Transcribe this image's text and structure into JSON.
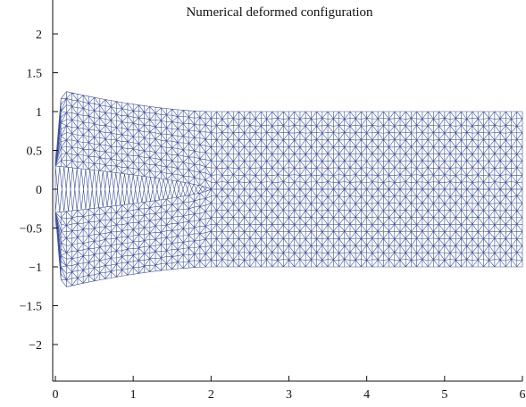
{
  "chart_data": {
    "type": "mesh",
    "title": "Numerical deformed configuration",
    "xlabel": "",
    "ylabel": "",
    "xlim": [
      0,
      6
    ],
    "ylim": [
      -2.3,
      2.3
    ],
    "x_ticks": [
      0,
      1,
      2,
      3,
      4,
      5,
      6
    ],
    "x_tick_labels": [
      "0",
      "1",
      "2",
      "3",
      "4",
      "5",
      "6"
    ],
    "y_ticks": [
      2,
      1.5,
      1,
      0.5,
      0,
      -0.5,
      -1,
      -1.5,
      -2
    ],
    "y_tick_labels": [
      "2",
      "1.5",
      "1",
      "0.5",
      "0",
      "−0.5",
      "−1",
      "−1.5",
      "−2"
    ],
    "grid": false,
    "mesh_color": "#3b4f9b",
    "mesh": {
      "domain_x": [
        0,
        6
      ],
      "domain_y": [
        -1,
        1
      ],
      "slit": {
        "from_x": 0,
        "to_x": 2.0,
        "y": 0
      },
      "upper_flap_tip": {
        "x": 0.08,
        "top": 1.27,
        "bottom": 0.3
      },
      "lower_flap_tip": {
        "x": 0.08,
        "top": -0.3,
        "bottom": -1.27
      },
      "mouth_half_width_at_x0": [
        0.42,
        0.5
      ]
    }
  }
}
